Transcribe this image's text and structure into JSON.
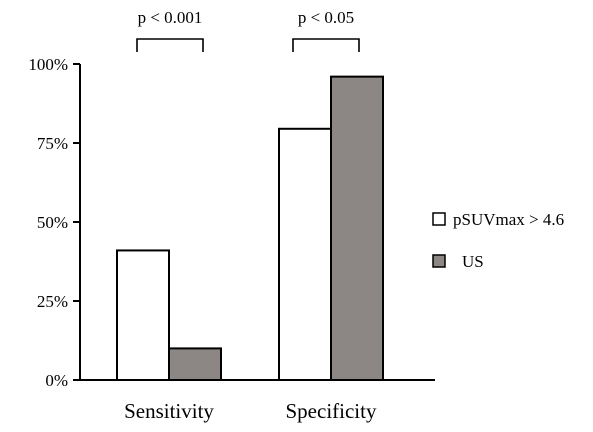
{
  "chart_data": {
    "type": "bar",
    "categories": [
      "Sensitivity",
      "Specificity"
    ],
    "series": [
      {
        "name": "pSUVmax > 4.6",
        "values": [
          41,
          79.5
        ],
        "color": "#ffffff"
      },
      {
        "name": "US",
        "values": [
          10,
          96
        ],
        "color": "#8c8784"
      }
    ],
    "ylim": [
      0,
      100
    ],
    "yticks": [
      {
        "value": 0,
        "label": "0%"
      },
      {
        "value": 25,
        "label": "25%"
      },
      {
        "value": 50,
        "label": "50%"
      },
      {
        "value": 75,
        "label": "75%"
      },
      {
        "value": 100,
        "label": "100%"
      }
    ],
    "significance": [
      {
        "category": "Sensitivity",
        "label": "p < 0.001"
      },
      {
        "category": "Specificity",
        "label": "p < 0.05"
      }
    ],
    "grid": false,
    "legend_position": "right",
    "title": "",
    "xlabel": "",
    "ylabel": ""
  }
}
